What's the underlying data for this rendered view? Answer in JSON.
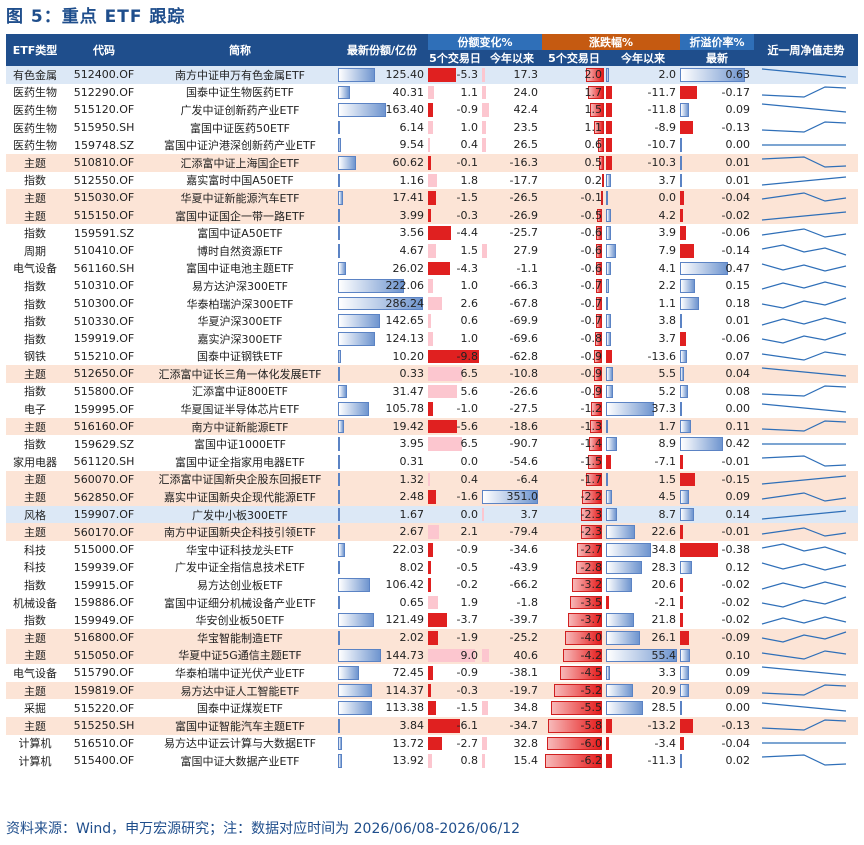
{
  "title": "图 5：重点 ETF 跟踪",
  "footer": "资料来源：Wind，申万宏源研究；注：数据对应时间为 2026/06/08-2026/06/12",
  "colors": {
    "header_blue": "#1f4e8c",
    "header_light": "#2f6fb8",
    "header_orange": "#c55a11",
    "row_alt": "#fce4d6",
    "row_blue": "#dce8f6"
  },
  "headers": {
    "type": "ETF类型",
    "code": "代码",
    "name": "简称",
    "shares": "最新份额/亿份",
    "share_change": "份额变化%",
    "change": "涨跌幅%",
    "premium": "折溢价率%",
    "trend": "近一周净值走势",
    "d5": "5个交易日",
    "ytd": "今年以来",
    "d5b": "5个交易日",
    "ytdb": "今年以来",
    "latest": "最新"
  },
  "rows": [
    {
      "type": "有色金属",
      "code": "512400.OF",
      "name": "南方中证申万有色金属ETF",
      "shares": "125.40",
      "sc5": "-5.3",
      "scy": "17.3",
      "ch5": "2.0",
      "chy": "2.0",
      "prem": "0.63",
      "style": "blue"
    },
    {
      "type": "医药生物",
      "code": "512290.OF",
      "name": "国泰中证生物医药ETF",
      "shares": "40.31",
      "sc5": "1.1",
      "scy": "24.0",
      "ch5": "1.7",
      "chy": "-11.7",
      "prem": "-0.17",
      "style": ""
    },
    {
      "type": "医药生物",
      "code": "515120.OF",
      "name": "广发中证创新药产业ETF",
      "shares": "163.40",
      "sc5": "-0.9",
      "scy": "42.4",
      "ch5": "1.5",
      "chy": "-11.8",
      "prem": "0.09",
      "style": ""
    },
    {
      "type": "医药生物",
      "code": "515950.SH",
      "name": "富国中证医药50ETF",
      "shares": "6.14",
      "sc5": "1.0",
      "scy": "23.5",
      "ch5": "1.1",
      "chy": "-8.9",
      "prem": "-0.13",
      "style": ""
    },
    {
      "type": "医药生物",
      "code": "159748.SZ",
      "name": "富国中证沪港深创新药产业ETF",
      "shares": "9.54",
      "sc5": "0.4",
      "scy": "26.5",
      "ch5": "0.6",
      "chy": "-10.7",
      "prem": "0.00",
      "style": ""
    },
    {
      "type": "主题",
      "code": "510810.OF",
      "name": "汇添富中证上海国企ETF",
      "shares": "60.62",
      "sc5": "-0.1",
      "scy": "-16.3",
      "ch5": "0.5",
      "chy": "-10.3",
      "prem": "0.01",
      "style": "alt"
    },
    {
      "type": "指数",
      "code": "512550.OF",
      "name": "嘉实富时中国A50ETF",
      "shares": "1.16",
      "sc5": "1.8",
      "scy": "-17.7",
      "ch5": "0.2",
      "chy": "3.7",
      "prem": "0.01",
      "style": ""
    },
    {
      "type": "主题",
      "code": "515030.OF",
      "name": "华夏中证新能源汽车ETF",
      "shares": "17.41",
      "sc5": "-1.5",
      "scy": "-26.5",
      "ch5": "-0.1",
      "chy": "0.0",
      "prem": "-0.04",
      "style": "alt"
    },
    {
      "type": "主题",
      "code": "515150.OF",
      "name": "富国中证国企一带一路ETF",
      "shares": "3.99",
      "sc5": "-0.3",
      "scy": "-26.9",
      "ch5": "-0.5",
      "chy": "4.2",
      "prem": "-0.02",
      "style": "alt"
    },
    {
      "type": "指数",
      "code": "159591.SZ",
      "name": "富国中证A50ETF",
      "shares": "3.56",
      "sc5": "-4.4",
      "scy": "-25.7",
      "ch5": "-0.6",
      "chy": "3.9",
      "prem": "-0.06",
      "style": ""
    },
    {
      "type": "周期",
      "code": "510410.OF",
      "name": "博时自然资源ETF",
      "shares": "4.67",
      "sc5": "1.5",
      "scy": "27.9",
      "ch5": "-0.6",
      "chy": "7.9",
      "prem": "-0.14",
      "style": ""
    },
    {
      "type": "电气设备",
      "code": "561160.SH",
      "name": "富国中证电池主题ETF",
      "shares": "26.02",
      "sc5": "-4.3",
      "scy": "-1.1",
      "ch5": "-0.6",
      "chy": "4.1",
      "prem": "0.47",
      "style": ""
    },
    {
      "type": "指数",
      "code": "510310.OF",
      "name": "易方达沪深300ETF",
      "shares": "222.06",
      "sc5": "1.0",
      "scy": "-66.3",
      "ch5": "-0.7",
      "chy": "2.2",
      "prem": "0.15",
      "style": ""
    },
    {
      "type": "指数",
      "code": "510300.OF",
      "name": "华泰柏瑞沪深300ETF",
      "shares": "286.24",
      "sc5": "2.6",
      "scy": "-67.8",
      "ch5": "-0.7",
      "chy": "1.1",
      "prem": "0.18",
      "style": ""
    },
    {
      "type": "指数",
      "code": "510330.OF",
      "name": "华夏沪深300ETF",
      "shares": "142.65",
      "sc5": "0.6",
      "scy": "-69.9",
      "ch5": "-0.7",
      "chy": "3.8",
      "prem": "0.01",
      "style": ""
    },
    {
      "type": "指数",
      "code": "159919.OF",
      "name": "嘉实沪深300ETF",
      "shares": "124.13",
      "sc5": "1.0",
      "scy": "-69.6",
      "ch5": "-0.8",
      "chy": "3.7",
      "prem": "-0.06",
      "style": ""
    },
    {
      "type": "钢铁",
      "code": "515210.OF",
      "name": "国泰中证钢铁ETF",
      "shares": "10.20",
      "sc5": "-9.8",
      "scy": "-62.8",
      "ch5": "-0.9",
      "chy": "-13.6",
      "prem": "0.07",
      "style": ""
    },
    {
      "type": "主题",
      "code": "512650.OF",
      "name": "汇添富中证长三角一体化发展ETF",
      "shares": "0.33",
      "sc5": "6.5",
      "scy": "-10.8",
      "ch5": "-0.9",
      "chy": "5.5",
      "prem": "0.04",
      "style": "alt"
    },
    {
      "type": "指数",
      "code": "515800.OF",
      "name": "汇添富中证800ETF",
      "shares": "31.47",
      "sc5": "5.6",
      "scy": "-26.6",
      "ch5": "-0.9",
      "chy": "5.2",
      "prem": "0.08",
      "style": ""
    },
    {
      "type": "电子",
      "code": "159995.OF",
      "name": "华夏国证半导体芯片ETF",
      "shares": "105.78",
      "sc5": "-1.0",
      "scy": "-27.5",
      "ch5": "-1.2",
      "chy": "37.3",
      "prem": "0.00",
      "style": ""
    },
    {
      "type": "主题",
      "code": "516160.OF",
      "name": "南方中证新能源ETF",
      "shares": "19.42",
      "sc5": "-5.6",
      "scy": "-18.6",
      "ch5": "-1.3",
      "chy": "1.7",
      "prem": "0.11",
      "style": "alt"
    },
    {
      "type": "指数",
      "code": "159629.SZ",
      "name": "富国中证1000ETF",
      "shares": "3.95",
      "sc5": "6.5",
      "scy": "-90.7",
      "ch5": "-1.4",
      "chy": "8.9",
      "prem": "0.42",
      "style": ""
    },
    {
      "type": "家用电器",
      "code": "561120.SH",
      "name": "富国中证全指家用电器ETF",
      "shares": "0.31",
      "sc5": "0.0",
      "scy": "-54.6",
      "ch5": "-1.5",
      "chy": "-7.1",
      "prem": "-0.01",
      "style": ""
    },
    {
      "type": "主题",
      "code": "560070.OF",
      "name": "汇添富中证国新央企股东回报ETF",
      "shares": "1.32",
      "sc5": "0.4",
      "scy": "-6.4",
      "ch5": "-1.7",
      "chy": "1.5",
      "prem": "-0.15",
      "style": "alt"
    },
    {
      "type": "主题",
      "code": "562850.OF",
      "name": "嘉实中证国新央企现代能源ETF",
      "shares": "2.48",
      "sc5": "-1.6",
      "scy": "351.0",
      "ch5": "-2.2",
      "chy": "4.5",
      "prem": "0.09",
      "style": "alt"
    },
    {
      "type": "风格",
      "code": "159907.OF",
      "name": "广发中小板300ETF",
      "shares": "1.67",
      "sc5": "0.0",
      "scy": "3.7",
      "ch5": "-2.3",
      "chy": "8.7",
      "prem": "0.14",
      "style": "blue"
    },
    {
      "type": "主题",
      "code": "560170.OF",
      "name": "南方中证国新央企科技引领ETF",
      "shares": "2.67",
      "sc5": "2.1",
      "scy": "-79.4",
      "ch5": "-2.3",
      "chy": "22.6",
      "prem": "-0.01",
      "style": "alt"
    },
    {
      "type": "科技",
      "code": "515000.OF",
      "name": "华宝中证科技龙头ETF",
      "shares": "22.03",
      "sc5": "-0.9",
      "scy": "-34.6",
      "ch5": "-2.7",
      "chy": "34.8",
      "prem": "-0.38",
      "style": ""
    },
    {
      "type": "科技",
      "code": "159939.OF",
      "name": "广发中证全指信息技术ETF",
      "shares": "8.02",
      "sc5": "-0.5",
      "scy": "-43.9",
      "ch5": "-2.8",
      "chy": "28.3",
      "prem": "0.12",
      "style": ""
    },
    {
      "type": "指数",
      "code": "159915.OF",
      "name": "易方达创业板ETF",
      "shares": "106.42",
      "sc5": "-0.2",
      "scy": "-66.2",
      "ch5": "-3.2",
      "chy": "20.6",
      "prem": "-0.02",
      "style": ""
    },
    {
      "type": "机械设备",
      "code": "159886.OF",
      "name": "富国中证细分机械设备产业ETF",
      "shares": "0.65",
      "sc5": "1.9",
      "scy": "-1.8",
      "ch5": "-3.5",
      "chy": "-2.1",
      "prem": "-0.02",
      "style": ""
    },
    {
      "type": "指数",
      "code": "159949.OF",
      "name": "华安创业板50ETF",
      "shares": "121.49",
      "sc5": "-3.7",
      "scy": "-39.7",
      "ch5": "-3.7",
      "chy": "21.8",
      "prem": "-0.02",
      "style": ""
    },
    {
      "type": "主题",
      "code": "516800.OF",
      "name": "华宝智能制造ETF",
      "shares": "2.02",
      "sc5": "-1.9",
      "scy": "-25.2",
      "ch5": "-4.0",
      "chy": "26.1",
      "prem": "-0.09",
      "style": "alt"
    },
    {
      "type": "主题",
      "code": "515050.OF",
      "name": "华夏中证5G通信主题ETF",
      "shares": "144.73",
      "sc5": "9.0",
      "scy": "40.6",
      "ch5": "-4.2",
      "chy": "55.4",
      "prem": "0.10",
      "style": "alt"
    },
    {
      "type": "电气设备",
      "code": "515790.OF",
      "name": "华泰柏瑞中证光伏产业ETF",
      "shares": "72.45",
      "sc5": "-0.9",
      "scy": "-38.1",
      "ch5": "-4.5",
      "chy": "3.3",
      "prem": "0.09",
      "style": ""
    },
    {
      "type": "主题",
      "code": "159819.OF",
      "name": "易方达中证人工智能ETF",
      "shares": "114.37",
      "sc5": "-0.3",
      "scy": "-19.7",
      "ch5": "-5.2",
      "chy": "20.9",
      "prem": "0.09",
      "style": "alt"
    },
    {
      "type": "采掘",
      "code": "515220.OF",
      "name": "国泰中证煤炭ETF",
      "shares": "113.38",
      "sc5": "-1.5",
      "scy": "34.8",
      "ch5": "-5.5",
      "chy": "28.5",
      "prem": "0.00",
      "style": ""
    },
    {
      "type": "主题",
      "code": "515250.SH",
      "name": "富国中证智能汽车主题ETF",
      "shares": "3.84",
      "sc5": "-6.1",
      "scy": "-34.7",
      "ch5": "-5.8",
      "chy": "-13.2",
      "prem": "-0.13",
      "style": "alt"
    },
    {
      "type": "计算机",
      "code": "516510.OF",
      "name": "易方达中证云计算与大数据ETF",
      "shares": "13.72",
      "sc5": "-2.7",
      "scy": "32.8",
      "ch5": "-6.0",
      "chy": "-3.4",
      "prem": "-0.04",
      "style": ""
    },
    {
      "type": "计算机",
      "code": "515400.OF",
      "name": "富国中证大数据产业ETF",
      "shares": "13.92",
      "sc5": "0.8",
      "scy": "15.4",
      "ch5": "-6.2",
      "chy": "-11.3",
      "prem": "0.02",
      "style": ""
    }
  ]
}
